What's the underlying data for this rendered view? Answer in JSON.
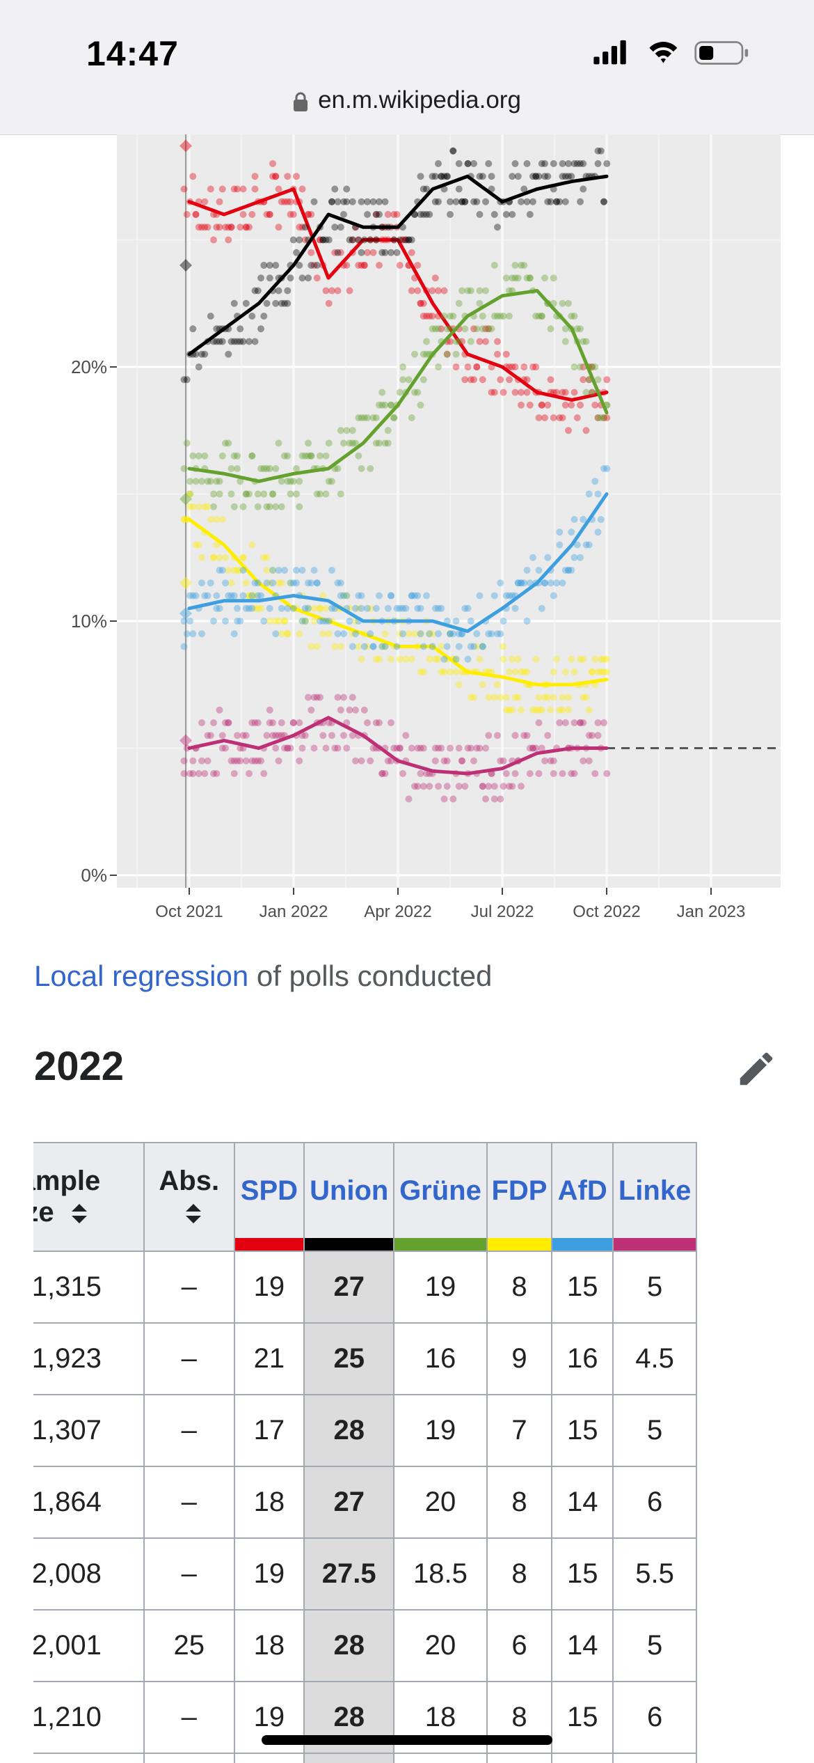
{
  "status_bar": {
    "time": "14:47"
  },
  "browser": {
    "url": "en.m.wikipedia.org"
  },
  "chart_data": {
    "type": "scatter",
    "ylim": [
      0,
      29.5
    ],
    "y_ticks": [
      "0%",
      "10%",
      "20%"
    ],
    "y_tick_values": [
      0,
      10,
      20
    ],
    "x_ticks": [
      "Oct 2021",
      "Jan 2022",
      "Apr 2022",
      "Jul 2022",
      "Oct 2022",
      "Jan 2023"
    ],
    "threshold": 5,
    "series": [
      {
        "color": "#e3000f",
        "x": [
          "Sep 2021",
          "Oct 2021",
          "Nov 2021",
          "Dec 2021",
          "Jan 2022",
          "Feb 2022",
          "Mar 2022",
          "Apr 2022",
          "May 2022",
          "Jun 2022",
          "Jul 2022",
          "Aug 2022",
          "Sep 2022",
          "Oct 2022"
        ],
        "trend": [
          27.5,
          26.5,
          26.0,
          26.5,
          27.0,
          23.5,
          25.0,
          25.0,
          22.5,
          20.5,
          20.0,
          19.0,
          18.7,
          19.0
        ]
      },
      {
        "color": "#000000",
        "x": [
          "Sep 2021",
          "Oct 2021",
          "Nov 2021",
          "Dec 2021",
          "Jan 2022",
          "Feb 2022",
          "Mar 2022",
          "Apr 2022",
          "May 2022",
          "Jun 2022",
          "Jul 2022",
          "Aug 2022",
          "Sep 2022",
          "Oct 2022"
        ],
        "trend": [
          20.5,
          20.5,
          21.5,
          22.5,
          24.0,
          26.0,
          25.5,
          25.5,
          27.0,
          27.5,
          26.5,
          27.0,
          27.3,
          27.5
        ]
      },
      {
        "color": "#64a12d",
        "x": [
          "Sep 2021",
          "Oct 2021",
          "Nov 2021",
          "Dec 2021",
          "Jan 2022",
          "Feb 2022",
          "Mar 2022",
          "Apr 2022",
          "May 2022",
          "Jun 2022",
          "Jul 2022",
          "Aug 2022",
          "Sep 2022",
          "Oct 2022"
        ],
        "trend": [
          15.8,
          16.0,
          15.8,
          15.5,
          15.8,
          16.0,
          17.0,
          18.5,
          20.5,
          22.0,
          22.8,
          23.0,
          21.5,
          18.2
        ]
      },
      {
        "color": "#ffed00",
        "x": [
          "Sep 2021",
          "Oct 2021",
          "Nov 2021",
          "Dec 2021",
          "Jan 2022",
          "Feb 2022",
          "Mar 2022",
          "Apr 2022",
          "May 2022",
          "Jun 2022",
          "Jul 2022",
          "Aug 2022",
          "Sep 2022",
          "Oct 2022"
        ],
        "trend": [
          12.8,
          14.0,
          13.0,
          11.5,
          10.5,
          10.0,
          9.5,
          9.0,
          9.0,
          8.0,
          7.8,
          7.5,
          7.5,
          7.7
        ]
      },
      {
        "color": "#3d9fdf",
        "x": [
          "Sep 2021",
          "Oct 2021",
          "Nov 2021",
          "Dec 2021",
          "Jan 2022",
          "Feb 2022",
          "Mar 2022",
          "Apr 2022",
          "May 2022",
          "Jun 2022",
          "Jul 2022",
          "Aug 2022",
          "Sep 2022",
          "Oct 2022"
        ],
        "trend": [
          10.0,
          10.5,
          10.8,
          10.8,
          11.0,
          10.8,
          10.0,
          10.0,
          10.0,
          9.6,
          10.5,
          11.5,
          13.0,
          15.0
        ]
      },
      {
        "color": "#be3075",
        "x": [
          "Sep 2021",
          "Oct 2021",
          "Nov 2021",
          "Dec 2021",
          "Jan 2022",
          "Feb 2022",
          "Mar 2022",
          "Apr 2022",
          "May 2022",
          "Jun 2022",
          "Jul 2022",
          "Aug 2022",
          "Sep 2022",
          "Oct 2022"
        ],
        "trend": [
          5.0,
          5.0,
          5.3,
          5.0,
          5.5,
          6.2,
          5.5,
          4.5,
          4.1,
          4.0,
          4.2,
          4.8,
          5.0,
          5.0
        ]
      }
    ]
  },
  "caption": {
    "link": "Local regression",
    "rest": " of polls conducted"
  },
  "section": {
    "title": "2022"
  },
  "table": {
    "headers": {
      "sample": "Sample size",
      "abs": "Abs."
    },
    "parties": [
      {
        "name": "SPD",
        "color": "#e3000f"
      },
      {
        "name": "Union",
        "color": "#000000"
      },
      {
        "name": "Grüne",
        "color": "#64a12d"
      },
      {
        "name": "FDP",
        "color": "#ffed00"
      },
      {
        "name": "AfD",
        "color": "#3d9fdf"
      },
      {
        "name": "Linke",
        "color": "#be3075"
      }
    ],
    "rows": [
      {
        "sample": "1,315",
        "abs": "–",
        "v": [
          "19",
          "27",
          "19",
          "8",
          "15",
          "5"
        ]
      },
      {
        "sample": "1,923",
        "abs": "–",
        "v": [
          "21",
          "25",
          "16",
          "9",
          "16",
          "4.5"
        ]
      },
      {
        "sample": "1,307",
        "abs": "–",
        "v": [
          "17",
          "28",
          "19",
          "7",
          "15",
          "5"
        ]
      },
      {
        "sample": "1,864",
        "abs": "–",
        "v": [
          "18",
          "27",
          "20",
          "8",
          "14",
          "6"
        ]
      },
      {
        "sample": "2,008",
        "abs": "–",
        "v": [
          "19",
          "27.5",
          "18.5",
          "8",
          "15",
          "5.5"
        ]
      },
      {
        "sample": "2,001",
        "abs": "25",
        "v": [
          "18",
          "28",
          "20",
          "6",
          "14",
          "5"
        ]
      },
      {
        "sample": "1,210",
        "abs": "–",
        "v": [
          "19",
          "28",
          "18",
          "8",
          "15",
          "6"
        ]
      },
      {
        "sample": "",
        "abs": "",
        "v": [
          "",
          "",
          "",
          "",
          "",
          ""
        ]
      }
    ]
  }
}
